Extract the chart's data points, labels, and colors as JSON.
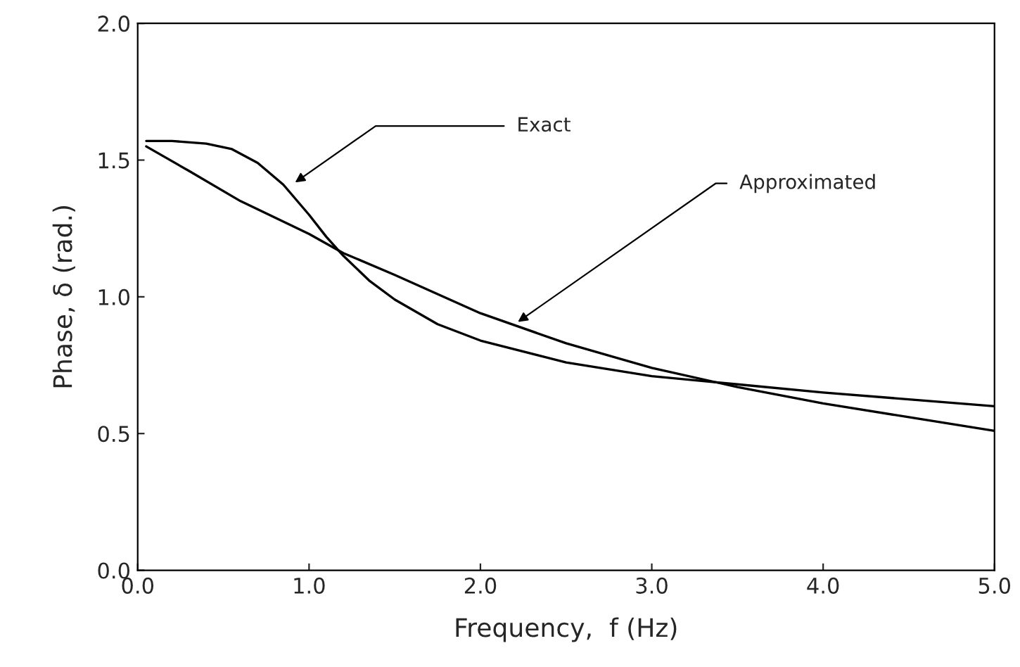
{
  "chart_data": {
    "type": "line",
    "xlabel": "Frequency,  f (Hz)",
    "ylabel": "Phase, δ (rad.)",
    "xlim": [
      0,
      5
    ],
    "ylim": [
      0,
      2
    ],
    "xticks": [
      {
        "value": 0,
        "label": "0.0"
      },
      {
        "value": 1,
        "label": "1.0"
      },
      {
        "value": 2,
        "label": "2.0"
      },
      {
        "value": 3,
        "label": "3.0"
      },
      {
        "value": 4,
        "label": "4.0"
      },
      {
        "value": 5,
        "label": "5.0"
      }
    ],
    "yticks": [
      {
        "value": 0,
        "label": "0.0"
      },
      {
        "value": 0.5,
        "label": "0.5"
      },
      {
        "value": 1,
        "label": "1.0"
      },
      {
        "value": 1.5,
        "label": "1.5"
      },
      {
        "value": 2,
        "label": "2.0"
      }
    ],
    "grid": false,
    "line_style": "solid",
    "series": [
      {
        "color": "#000000",
        "x": [
          0.05,
          0.2,
          0.4,
          0.55,
          0.7,
          0.85,
          1.0,
          1.1,
          1.2,
          1.35,
          1.5,
          1.75,
          2.0,
          2.5,
          3.0,
          3.5,
          4.0,
          4.5,
          5.0
        ],
        "values": [
          1.57,
          1.57,
          1.56,
          1.54,
          1.49,
          1.41,
          1.3,
          1.22,
          1.15,
          1.06,
          0.99,
          0.9,
          0.84,
          0.76,
          0.71,
          0.68,
          0.65,
          0.625,
          0.6
        ]
      },
      {
        "color": "#000000",
        "x": [
          0.05,
          0.3,
          0.6,
          1.0,
          1.2,
          1.5,
          2.0,
          2.5,
          3.0,
          3.5,
          4.0,
          4.5,
          5.0
        ],
        "values": [
          1.55,
          1.46,
          1.35,
          1.23,
          1.16,
          1.08,
          0.94,
          0.83,
          0.74,
          0.67,
          0.61,
          0.56,
          0.51
        ]
      }
    ],
    "annotations": [
      {
        "text": "Exact",
        "x": 0.9,
        "y": 1.41
      },
      {
        "text": "Approximated",
        "x": 2.2,
        "y": 0.9
      }
    ]
  }
}
